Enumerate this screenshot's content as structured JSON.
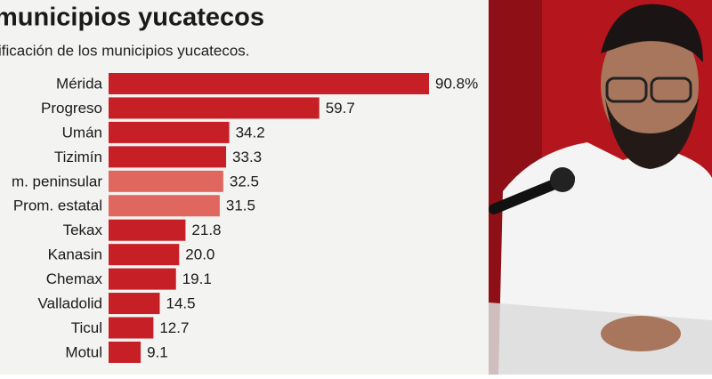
{
  "chart_data": {
    "type": "hbar",
    "title": "municipios yucatecos",
    "subtitle": "ificación de los municipios yucatecos.",
    "categories": [
      "Mérida",
      "Progreso",
      "Umán",
      "Tizimín",
      "m. peninsular",
      "Prom. estatal",
      "Tekax",
      "Kanasin",
      "Chemax",
      "Valladolid",
      "Ticul",
      "Motul"
    ],
    "values": [
      90.8,
      59.7,
      34.2,
      33.3,
      32.5,
      31.5,
      21.8,
      20.0,
      19.1,
      14.5,
      12.7,
      9.1
    ],
    "value_labels": [
      "90.8%",
      "59.7",
      "34.2",
      "33.3",
      "32.5",
      "31.5",
      "21.8",
      "20.0",
      "19.1",
      "14.5",
      "12.7",
      "9.1"
    ],
    "colors": [
      "#c61f26",
      "#c61f26",
      "#c61f26",
      "#c61f26",
      "#e0675d",
      "#e0675d",
      "#c61f26",
      "#c61f26",
      "#c61f26",
      "#c61f26",
      "#c61f26",
      "#c61f26"
    ]
  }
}
